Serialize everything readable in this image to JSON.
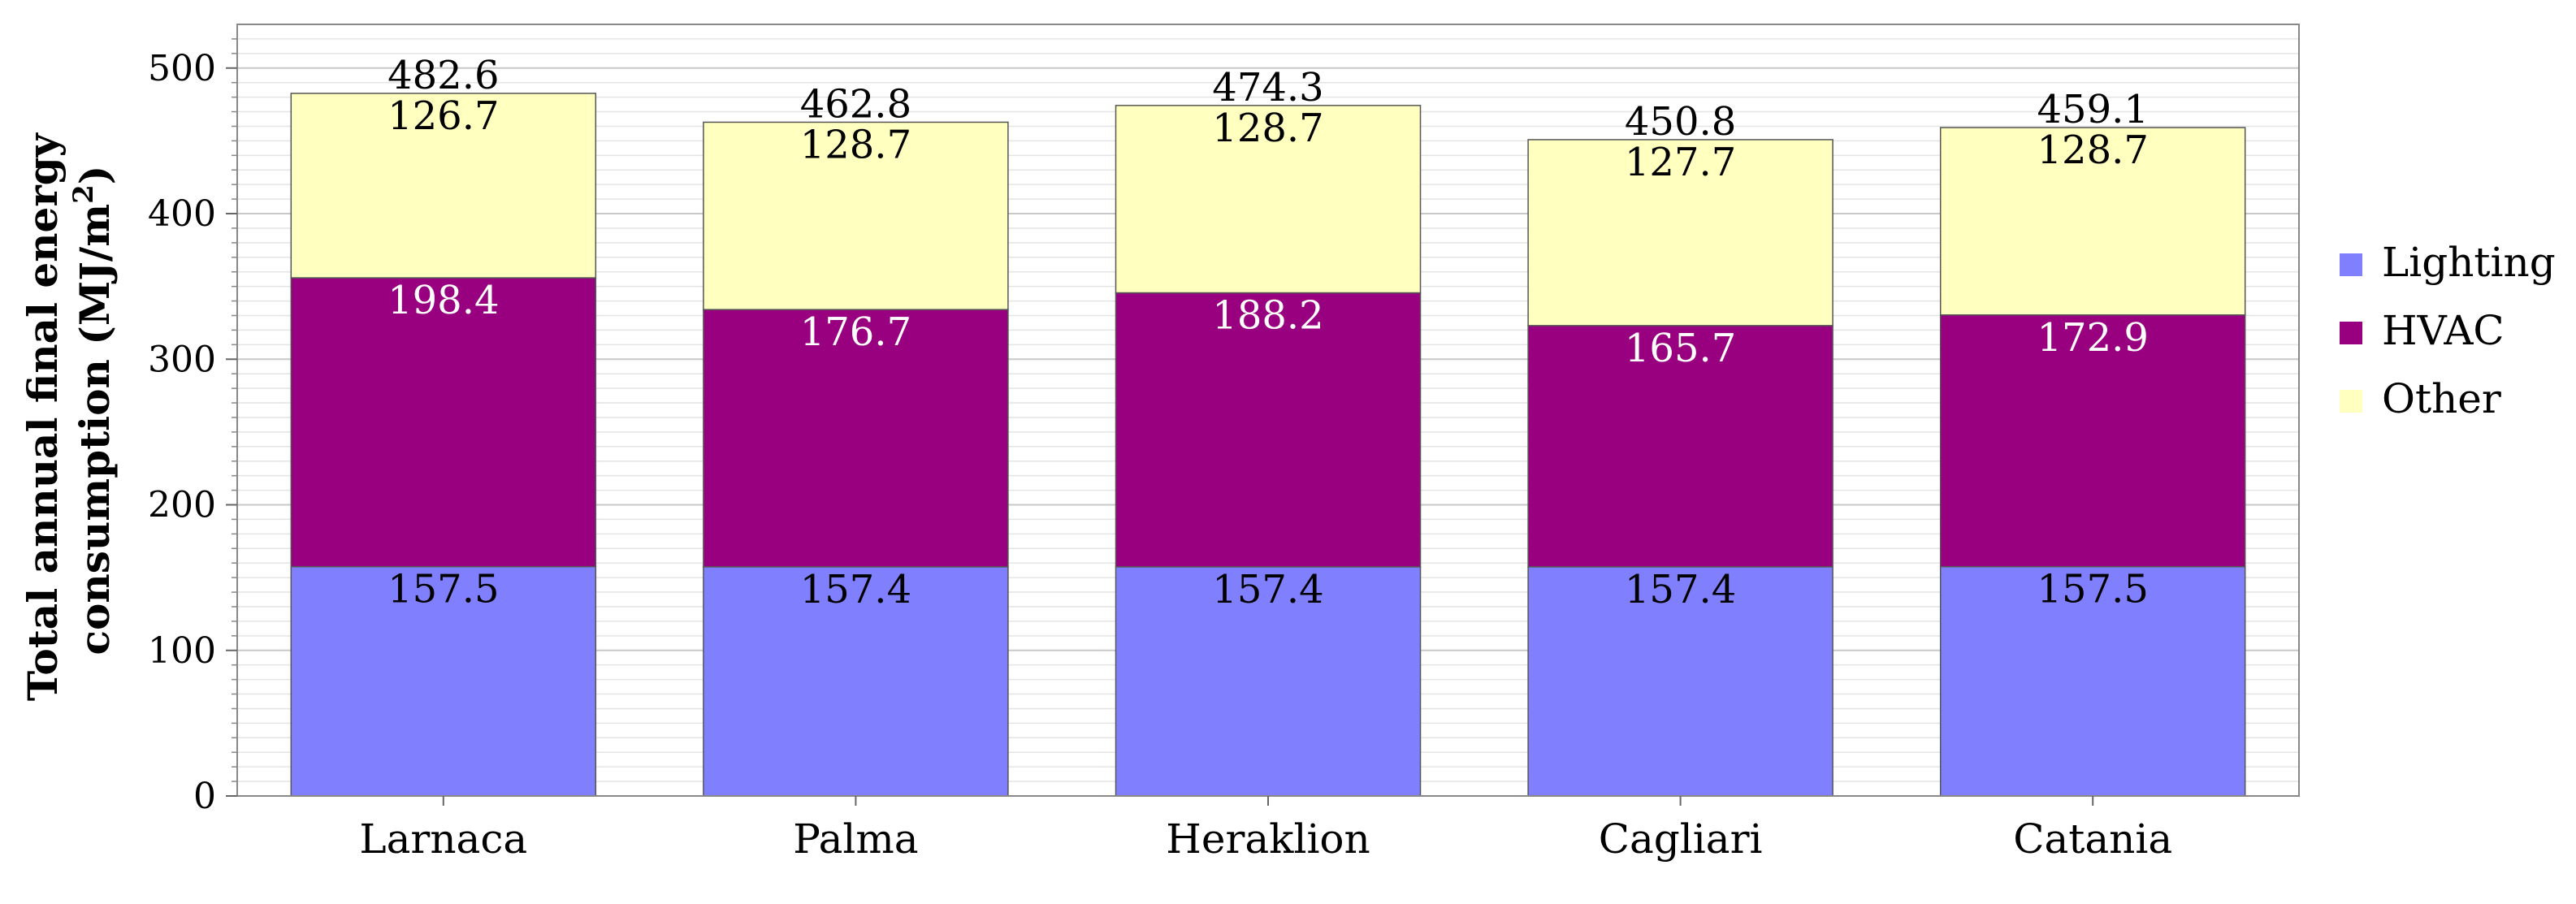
{
  "chart_data": {
    "type": "bar",
    "stacked": true,
    "categories": [
      "Larnaca",
      "Palma",
      "Heraklion",
      "Cagliari",
      "Catania"
    ],
    "series": [
      {
        "name": "Lighting",
        "values": [
          157.5,
          157.4,
          157.4,
          157.4,
          157.5
        ],
        "color": "#8080ff",
        "label_color": "#000000"
      },
      {
        "name": "HVAC",
        "values": [
          198.4,
          176.7,
          188.2,
          165.7,
          172.9
        ],
        "color": "#990080",
        "label_color": "#ffffff"
      },
      {
        "name": "Other",
        "values": [
          126.7,
          128.7,
          128.7,
          127.7,
          128.7
        ],
        "color": "#ffffc0",
        "label_color": "#000000"
      }
    ],
    "totals": [
      "482.6",
      "462.8",
      "474.3",
      "450.8",
      "459.1"
    ],
    "value_labels": {
      "Lighting": [
        "157.5",
        "157.4",
        "157.4",
        "157.4",
        "157.5"
      ],
      "HVAC": [
        "198.4",
        "176.7",
        "188.2",
        "165.7",
        "172.9"
      ],
      "Other": [
        "126.7",
        "128.7",
        "128.7",
        "127.7",
        "128.7"
      ]
    },
    "ylabel_line1": "Total annual final energy",
    "ylabel_line2_prefix": "consumption (MJ/m",
    "ylabel_superscript": "2",
    "ylabel_line2_suffix": ")",
    "ylim": [
      0,
      530
    ],
    "yticks": [
      0,
      100,
      200,
      300,
      400,
      500
    ],
    "minor_grid_step": 10,
    "grid": true,
    "legend_position": "right"
  }
}
